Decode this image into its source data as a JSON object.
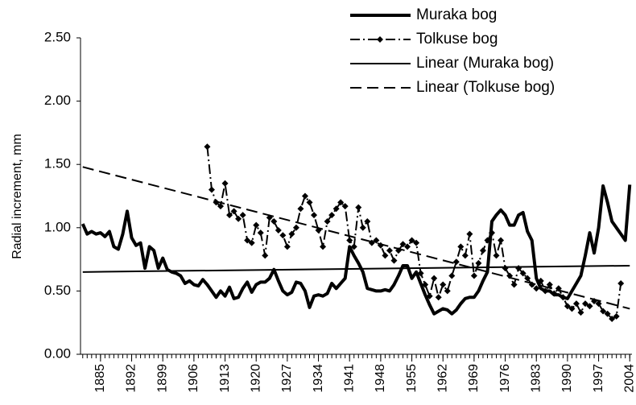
{
  "chart_data": {
    "type": "line",
    "y_label": "Radial increment, mm",
    "xlim": [
      1880.5,
      2004.5
    ],
    "xticks": [
      1885,
      1892,
      1899,
      1906,
      1913,
      1920,
      1927,
      1934,
      1941,
      1948,
      1955,
      1962,
      1969,
      1976,
      1983,
      1990,
      1997,
      2004
    ],
    "ylim": [
      0,
      2.5
    ],
    "yticks": [
      {
        "value": 0,
        "label": "0.00"
      },
      {
        "value": 0.5,
        "label": "0.50"
      },
      {
        "value": 1,
        "label": "1.00"
      },
      {
        "value": 1.5,
        "label": "1.50"
      },
      {
        "value": 2,
        "label": "2.00"
      },
      {
        "value": 2.5,
        "label": "2.50"
      }
    ],
    "legend": "top-right",
    "series": [
      {
        "name": "Muraka bog",
        "color": "#000000",
        "line_style": "solid",
        "line_width": 4,
        "x": [
          1881,
          1882,
          1883,
          1884,
          1885,
          1886,
          1887,
          1888,
          1889,
          1890,
          1891,
          1892,
          1893,
          1894,
          1895,
          1896,
          1897,
          1898,
          1899,
          1900,
          1901,
          1902,
          1903,
          1904,
          1905,
          1906,
          1907,
          1908,
          1909,
          1910,
          1911,
          1912,
          1913,
          1914,
          1915,
          1916,
          1917,
          1918,
          1919,
          1920,
          1921,
          1922,
          1923,
          1924,
          1925,
          1926,
          1927,
          1928,
          1929,
          1930,
          1931,
          1932,
          1933,
          1934,
          1935,
          1936,
          1937,
          1938,
          1939,
          1940,
          1941,
          1942,
          1943,
          1944,
          1945,
          1946,
          1947,
          1948,
          1949,
          1950,
          1951,
          1952,
          1953,
          1954,
          1955,
          1956,
          1957,
          1958,
          1959,
          1960,
          1961,
          1962,
          1963,
          1964,
          1965,
          1966,
          1967,
          1968,
          1969,
          1970,
          1971,
          1972,
          1973,
          1974,
          1975,
          1976,
          1977,
          1978,
          1979,
          1980,
          1981,
          1982,
          1983,
          1984,
          1985,
          1986,
          1987,
          1988,
          1989,
          1990,
          1991,
          1992,
          1993,
          1994,
          1995,
          1996,
          1997,
          1998,
          1999,
          2000,
          2001,
          2002,
          2003,
          2004
        ],
        "values": [
          1.03,
          0.95,
          0.97,
          0.95,
          0.96,
          0.93,
          0.97,
          0.85,
          0.83,
          0.95,
          1.13,
          0.92,
          0.86,
          0.88,
          0.68,
          0.85,
          0.82,
          0.68,
          0.76,
          0.67,
          0.65,
          0.64,
          0.62,
          0.56,
          0.58,
          0.55,
          0.54,
          0.59,
          0.55,
          0.5,
          0.45,
          0.5,
          0.46,
          0.53,
          0.44,
          0.45,
          0.52,
          0.57,
          0.49,
          0.55,
          0.57,
          0.57,
          0.6,
          0.67,
          0.58,
          0.5,
          0.47,
          0.49,
          0.57,
          0.56,
          0.5,
          0.37,
          0.46,
          0.47,
          0.46,
          0.48,
          0.56,
          0.52,
          0.56,
          0.6,
          0.85,
          0.78,
          0.72,
          0.65,
          0.52,
          0.51,
          0.5,
          0.5,
          0.51,
          0.5,
          0.55,
          0.62,
          0.7,
          0.7,
          0.6,
          0.65,
          0.56,
          0.47,
          0.39,
          0.32,
          0.34,
          0.36,
          0.35,
          0.32,
          0.35,
          0.4,
          0.44,
          0.45,
          0.45,
          0.5,
          0.58,
          0.65,
          1.05,
          1.1,
          1.14,
          1.1,
          1.02,
          1.02,
          1.1,
          1.12,
          0.97,
          0.9,
          0.6,
          0.52,
          0.5,
          0.5,
          0.47,
          0.47,
          0.45,
          0.44,
          0.5,
          0.56,
          0.62,
          0.78,
          0.96,
          0.8,
          1.0,
          1.33,
          1.2,
          1.05,
          1.0,
          0.95,
          0.9,
          1.34
        ]
      },
      {
        "name": "Tolkuse bog",
        "color": "#000000",
        "line_style": "dashdot",
        "line_width": 2,
        "marker": "diamond",
        "x": [
          1909,
          1910,
          1911,
          1912,
          1913,
          1914,
          1915,
          1916,
          1917,
          1918,
          1919,
          1920,
          1921,
          1922,
          1923,
          1924,
          1925,
          1926,
          1927,
          1928,
          1929,
          1930,
          1931,
          1932,
          1933,
          1934,
          1935,
          1936,
          1937,
          1938,
          1939,
          1940,
          1941,
          1942,
          1943,
          1944,
          1945,
          1946,
          1947,
          1948,
          1949,
          1950,
          1951,
          1952,
          1953,
          1954,
          1955,
          1956,
          1957,
          1958,
          1959,
          1960,
          1961,
          1962,
          1963,
          1964,
          1965,
          1966,
          1967,
          1968,
          1969,
          1970,
          1971,
          1972,
          1973,
          1974,
          1975,
          1976,
          1977,
          1978,
          1979,
          1980,
          1981,
          1982,
          1983,
          1984,
          1985,
          1986,
          1987,
          1988,
          1989,
          1990,
          1991,
          1992,
          1993,
          1994,
          1995,
          1996,
          1997,
          1998,
          1999,
          2000,
          2001,
          2002
        ],
        "values": [
          1.64,
          1.3,
          1.2,
          1.17,
          1.35,
          1.1,
          1.13,
          1.07,
          1.1,
          0.9,
          0.88,
          1.02,
          0.96,
          0.78,
          1.08,
          1.05,
          0.98,
          0.94,
          0.85,
          0.95,
          1.0,
          1.15,
          1.25,
          1.2,
          1.1,
          0.98,
          0.85,
          1.05,
          1.1,
          1.15,
          1.2,
          1.17,
          0.9,
          0.85,
          1.16,
          1.0,
          1.05,
          0.88,
          0.9,
          0.86,
          0.78,
          0.82,
          0.74,
          0.82,
          0.87,
          0.85,
          0.9,
          0.88,
          0.64,
          0.55,
          0.46,
          0.6,
          0.45,
          0.55,
          0.5,
          0.62,
          0.73,
          0.85,
          0.78,
          0.95,
          0.62,
          0.72,
          0.82,
          0.9,
          0.96,
          0.78,
          0.9,
          0.68,
          0.62,
          0.55,
          0.68,
          0.64,
          0.6,
          0.55,
          0.52,
          0.58,
          0.5,
          0.55,
          0.48,
          0.52,
          0.45,
          0.38,
          0.36,
          0.4,
          0.33,
          0.4,
          0.38,
          0.42,
          0.4,
          0.34,
          0.32,
          0.28,
          0.3,
          0.56
        ]
      },
      {
        "name": "Linear (Muraka bog)",
        "color": "#000000",
        "line_style": "solid",
        "line_width": 2,
        "x": [
          1881,
          2004
        ],
        "values": [
          0.65,
          0.7
        ]
      },
      {
        "name": "Linear (Tolkuse bog)",
        "color": "#000000",
        "line_style": "dashed",
        "line_width": 2,
        "x": [
          1881,
          2004
        ],
        "values": [
          1.48,
          0.36
        ]
      }
    ]
  }
}
